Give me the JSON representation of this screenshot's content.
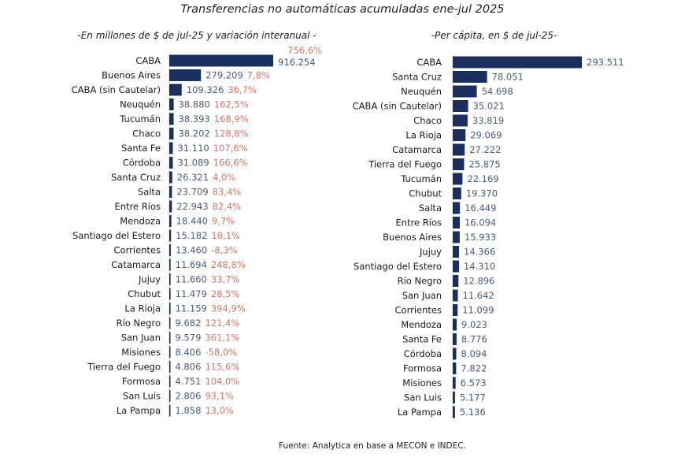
{
  "title": "Transferencias no automáticas acumuladas ene-jul 2025",
  "footer": "Fuente: Analytica en base a MECON e INDEC.",
  "colors": {
    "bar": "#1b2f5e",
    "value": "#4b5b7a",
    "variation": "#d27766"
  },
  "chart_data": [
    {
      "type": "bar",
      "orientation": "horizontal",
      "subtitle": "-En millones de $ de jul-25 y variación interanual -",
      "categories": [
        "CABA",
        "Buenos Aires",
        "CABA (sin Cautelar)",
        "Neuquén",
        "Tucumán",
        "Chaco",
        "Santa Fe",
        "Córdoba",
        "Santa Cruz",
        "Salta",
        "Entre Ríos",
        "Mendoza",
        "Santiago del Estero",
        "Corrientes",
        "Catamarca",
        "Jujuy",
        "Chubut",
        "La Rioja",
        "Río Negro",
        "San Juan",
        "Misiones",
        "Tierra del Fuego",
        "Formosa",
        "San Luis",
        "La Pampa"
      ],
      "values": [
        916254,
        279209,
        109326,
        38880,
        38393,
        38202,
        31110,
        31089,
        26321,
        23709,
        22943,
        18440,
        15182,
        13460,
        11694,
        11660,
        11479,
        11159,
        9682,
        9579,
        8406,
        4806,
        4751,
        2806,
        1858
      ],
      "value_labels": [
        "916.254",
        "279.209",
        "109.326",
        "38.880",
        "38.393",
        "38.202",
        "31.110",
        "31.089",
        "26.321",
        "23.709",
        "22.943",
        "18.440",
        "15.182",
        "13.460",
        "11.694",
        "11.660",
        "11.479",
        "11.159",
        "9.682",
        "9.579",
        "8.406",
        "4.806",
        "4.751",
        "2.806",
        "1.858"
      ],
      "variation_labels": [
        "756,6%",
        "7,8%",
        "36,7%",
        "162,5%",
        "168,9%",
        "128,8%",
        "107,6%",
        "166,6%",
        "4,0%",
        "83,4%",
        "82,4%",
        "9,7%",
        "18,1%",
        "-8,3%",
        "248,8%",
        "33,7%",
        "28,5%",
        "394,9%",
        "121,4%",
        "361,1%",
        "-58,0%",
        "115,6%",
        "104,0%",
        "93,1%",
        "13,0%"
      ]
    },
    {
      "type": "bar",
      "orientation": "horizontal",
      "subtitle": "-Per cápita, en $ de jul-25-",
      "categories": [
        "CABA",
        "Santa Cruz",
        "Neuquén",
        "CABA (sin Cautelar)",
        "Chaco",
        "La Rioja",
        "Catamarca",
        "Tierra del Fuego",
        "Tucumán",
        "Chubut",
        "Salta",
        "Entre Ríos",
        "Buenos Aires",
        "Jujuy",
        "Santiago del Estero",
        "Río Negro",
        "San Juan",
        "Corrientes",
        "Mendoza",
        "Santa Fe",
        "Córdoba",
        "Formosa",
        "Misiones",
        "San Luis",
        "La Pampa"
      ],
      "values": [
        293511,
        78051,
        54698,
        35021,
        33819,
        29069,
        27222,
        25875,
        22169,
        19370,
        16449,
        16094,
        15933,
        14366,
        14310,
        12896,
        11642,
        11099,
        9023,
        8776,
        8094,
        7822,
        6573,
        5177,
        5136
      ],
      "value_labels": [
        "293.511",
        "78.051",
        "54.698",
        "35.021",
        "33.819",
        "29.069",
        "27.222",
        "25.875",
        "22.169",
        "19.370",
        "16.449",
        "16.094",
        "15.933",
        "14.366",
        "14.310",
        "12.896",
        "11.642",
        "11.099",
        "9.023",
        "8.776",
        "8.094",
        "7.822",
        "6.573",
        "5.177",
        "5.136"
      ]
    }
  ]
}
